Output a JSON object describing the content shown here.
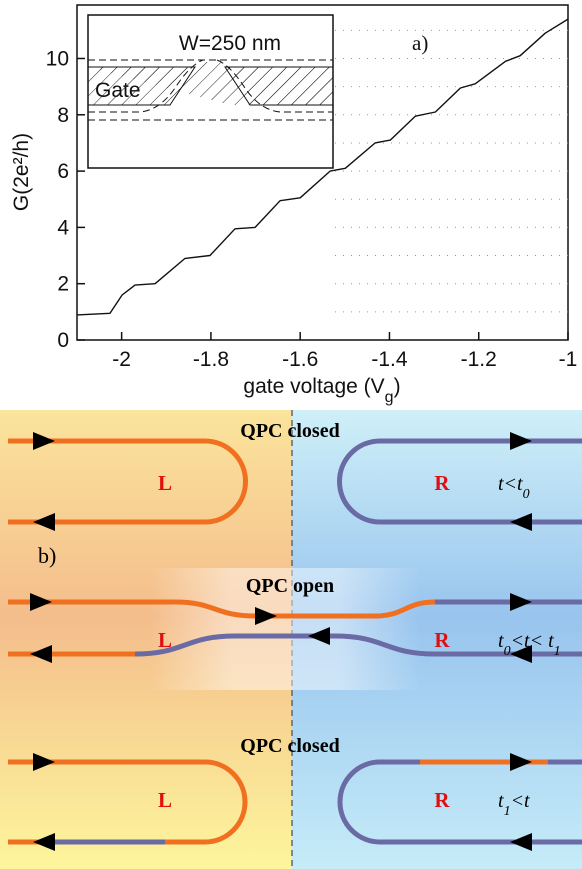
{
  "chart_data": {
    "type": "line",
    "xlabel": [
      "gate voltage (V",
      "g",
      ")"
    ],
    "ylabel": "G(2e²/h)",
    "panel_label": "a)",
    "inset": {
      "width_label": "W=250 nm",
      "gate_label": "Gate"
    },
    "x": [
      -2.1,
      -2.026,
      -1.999,
      -1.97,
      -1.925,
      -1.858,
      -1.802,
      -1.746,
      -1.701,
      -1.645,
      -1.6,
      -1.533,
      -1.499,
      -1.432,
      -1.398,
      -1.342,
      -1.297,
      -1.241,
      -1.208,
      -1.14,
      -1.107,
      -1.051,
      -1.0
    ],
    "series": [
      {
        "color": "#111111",
        "values": [
          0.89,
          0.95,
          1.6,
          1.95,
          2.0,
          2.9,
          3.0,
          3.95,
          4.0,
          4.95,
          5.05,
          6.0,
          6.1,
          7.0,
          7.1,
          7.95,
          8.1,
          8.95,
          9.1,
          9.9,
          10.1,
          10.9,
          11.4
        ]
      }
    ],
    "xlim": [
      -2.1,
      -1.0
    ],
    "ylim": [
      0,
      11.9
    ],
    "xticks": [
      -2,
      -1.8,
      -1.6,
      -1.4,
      -1.2,
      -1
    ],
    "yticks": [
      0,
      2,
      4,
      6,
      8,
      10
    ],
    "grid_lines": [
      1,
      2,
      3,
      4,
      5,
      6,
      7,
      8,
      9,
      10,
      11
    ]
  },
  "diagram": {
    "label": "b)",
    "panels": [
      {
        "title": "QPC closed",
        "left": "L",
        "right": "R",
        "time": [
          "t<t",
          "0"
        ]
      },
      {
        "title": "QPC open",
        "left": "L",
        "right": "R",
        "time": [
          "t",
          "0",
          "<t< t",
          "1"
        ]
      },
      {
        "title": "QPC closed",
        "left": "L",
        "right": "R",
        "time": [
          "t",
          "1",
          "<t"
        ]
      }
    ]
  }
}
